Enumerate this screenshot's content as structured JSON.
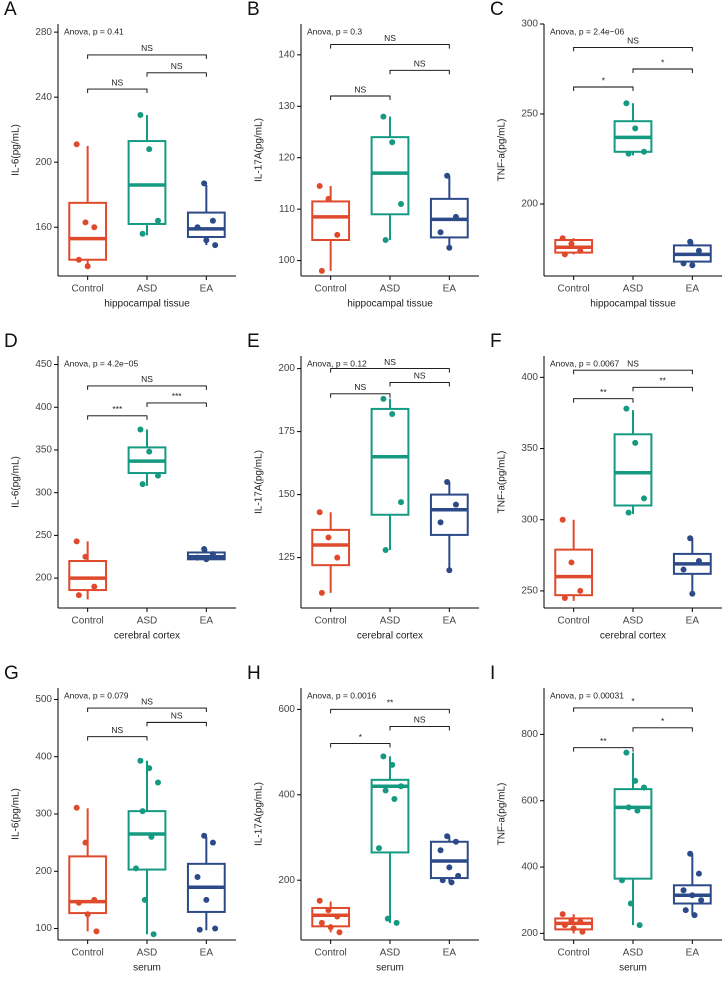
{
  "chart_data": [
    {
      "type": "box",
      "panel": "A",
      "annotation": "Anova, p = 0.41",
      "xlabel": "hippocampal tissue",
      "ylabel": "IL-6(pg/mL)",
      "categories": [
        "Control",
        "ASD",
        "EA"
      ],
      "colors": [
        "#e04a2c",
        "#159a82",
        "#2c4a88"
      ],
      "boxes": [
        {
          "min": 136,
          "q1": 140,
          "median": 153,
          "q3": 175,
          "max": 210,
          "points": [
            211,
            163,
            160,
            140,
            136
          ]
        },
        {
          "min": 155,
          "q1": 162,
          "median": 186,
          "q3": 213,
          "max": 229,
          "points": [
            229,
            208,
            164,
            156
          ]
        },
        {
          "min": 149,
          "q1": 154,
          "median": 159,
          "q3": 169,
          "max": 186,
          "points": [
            187,
            164,
            160,
            152,
            149
          ]
        }
      ],
      "ylim": [
        130,
        285
      ],
      "yticks": [
        160,
        200,
        240,
        280
      ],
      "brackets": [
        {
          "from": 0,
          "to": 1,
          "y": 245,
          "label": "NS"
        },
        {
          "from": 1,
          "to": 2,
          "y": 255,
          "label": "NS"
        },
        {
          "from": 0,
          "to": 2,
          "y": 266,
          "label": "NS"
        }
      ]
    },
    {
      "type": "box",
      "panel": "B",
      "annotation": "Anova, p = 0.3",
      "xlabel": "hippocampal tissue",
      "ylabel": "IL-17A(pg/mL)",
      "categories": [
        "Control",
        "ASD",
        "EA"
      ],
      "colors": [
        "#e04a2c",
        "#159a82",
        "#2c4a88"
      ],
      "boxes": [
        {
          "min": 98,
          "q1": 104,
          "median": 108.5,
          "q3": 111.5,
          "max": 114.5,
          "points": [
            114.5,
            112,
            105,
            98
          ]
        },
        {
          "min": 104,
          "q1": 109,
          "median": 117,
          "q3": 124,
          "max": 128,
          "points": [
            128,
            123,
            111,
            104
          ]
        },
        {
          "min": 102.5,
          "q1": 104.5,
          "median": 108,
          "q3": 112,
          "max": 116.5,
          "points": [
            116.5,
            108.5,
            105.5,
            102.5
          ]
        }
      ],
      "ylim": [
        97,
        146
      ],
      "yticks": [
        100,
        110,
        120,
        130,
        140
      ],
      "brackets": [
        {
          "from": 0,
          "to": 1,
          "y": 132,
          "label": "NS"
        },
        {
          "from": 1,
          "to": 2,
          "y": 137,
          "label": "NS"
        },
        {
          "from": 0,
          "to": 2,
          "y": 142,
          "label": "NS"
        }
      ]
    },
    {
      "type": "box",
      "panel": "C",
      "annotation": "Anova, p = 2.4e−06",
      "xlabel": "hippocampal tissue",
      "ylabel": "TNF-a(pg/mL)",
      "categories": [
        "Control",
        "ASD",
        "EA"
      ],
      "colors": [
        "#e04a2c",
        "#159a82",
        "#2c4a88"
      ],
      "boxes": [
        {
          "min": 172,
          "q1": 173,
          "median": 176,
          "q3": 180,
          "max": 181,
          "points": [
            181,
            178,
            174,
            172
          ]
        },
        {
          "min": 227,
          "q1": 229,
          "median": 237,
          "q3": 246,
          "max": 256,
          "points": [
            256,
            242,
            229,
            228
          ]
        },
        {
          "min": 165,
          "q1": 168,
          "median": 172,
          "q3": 177,
          "max": 179,
          "points": [
            179,
            174,
            167,
            166
          ]
        }
      ],
      "ylim": [
        160,
        300
      ],
      "yticks": [
        200,
        250,
        300
      ],
      "brackets": [
        {
          "from": 0,
          "to": 1,
          "y": 265,
          "label": "*"
        },
        {
          "from": 1,
          "to": 2,
          "y": 275,
          "label": "*"
        },
        {
          "from": 0,
          "to": 2,
          "y": 287,
          "label": "NS"
        }
      ]
    },
    {
      "type": "box",
      "panel": "D",
      "annotation": "Anova, p = 4.2e−05",
      "xlabel": "cerebral cortex",
      "ylabel": "IL-6(pg/mL)",
      "categories": [
        "Control",
        "ASD",
        "EA"
      ],
      "colors": [
        "#e04a2c",
        "#159a82",
        "#2c4a88"
      ],
      "boxes": [
        {
          "min": 175,
          "q1": 186,
          "median": 200,
          "q3": 220,
          "max": 243,
          "points": [
            243,
            225,
            190,
            180
          ]
        },
        {
          "min": 308,
          "q1": 323,
          "median": 337,
          "q3": 353,
          "max": 374,
          "points": [
            374,
            348,
            320,
            310
          ]
        },
        {
          "min": 220,
          "q1": 222,
          "median": 225,
          "q3": 230,
          "max": 234,
          "points": [
            234,
            228,
            224,
            222
          ]
        }
      ],
      "ylim": [
        165,
        460
      ],
      "yticks": [
        200,
        250,
        300,
        350,
        400,
        450
      ],
      "brackets": [
        {
          "from": 0,
          "to": 1,
          "y": 390,
          "label": "***"
        },
        {
          "from": 1,
          "to": 2,
          "y": 405,
          "label": "***"
        },
        {
          "from": 0,
          "to": 2,
          "y": 425,
          "label": "NS"
        }
      ]
    },
    {
      "type": "box",
      "panel": "E",
      "annotation": "Anova, p = 0.12",
      "xlabel": "cerebral cortex",
      "ylabel": "IL-17A(pg/mL)",
      "categories": [
        "Control",
        "ASD",
        "EA"
      ],
      "colors": [
        "#e04a2c",
        "#159a82",
        "#2c4a88"
      ],
      "boxes": [
        {
          "min": 111,
          "q1": 122,
          "median": 130,
          "q3": 136,
          "max": 143,
          "points": [
            143,
            133,
            125,
            111
          ]
        },
        {
          "min": 128,
          "q1": 142,
          "median": 165,
          "q3": 184,
          "max": 188,
          "points": [
            188,
            182,
            147,
            128
          ]
        },
        {
          "min": 120,
          "q1": 134,
          "median": 144,
          "q3": 150,
          "max": 155,
          "points": [
            155,
            146,
            139,
            120
          ]
        }
      ],
      "ylim": [
        105,
        205
      ],
      "yticks": [
        125,
        150,
        175,
        200
      ],
      "brackets": [
        {
          "from": 0,
          "to": 1,
          "y": 190,
          "label": "NS"
        },
        {
          "from": 1,
          "to": 2,
          "y": 194.5,
          "label": "NS"
        },
        {
          "from": 0,
          "to": 2,
          "y": 200,
          "label": "NS"
        }
      ]
    },
    {
      "type": "box",
      "panel": "F",
      "annotation": "Anova, p = 0.0067",
      "xlabel": "cerebral cortex",
      "ylabel": "TNF-a(pg/mL)",
      "categories": [
        "Control",
        "ASD",
        "EA"
      ],
      "colors": [
        "#e04a2c",
        "#159a82",
        "#2c4a88"
      ],
      "boxes": [
        {
          "min": 243,
          "q1": 247,
          "median": 260,
          "q3": 279,
          "max": 300,
          "points": [
            300,
            270,
            250,
            245
          ]
        },
        {
          "min": 304,
          "q1": 310,
          "median": 333,
          "q3": 360,
          "max": 377,
          "points": [
            378,
            354,
            315,
            305
          ]
        },
        {
          "min": 248,
          "q1": 262,
          "median": 269,
          "q3": 276,
          "max": 287,
          "points": [
            287,
            271,
            265,
            248
          ]
        }
      ],
      "ylim": [
        238,
        415
      ],
      "yticks": [
        250,
        300,
        350,
        400
      ],
      "brackets": [
        {
          "from": 0,
          "to": 1,
          "y": 385,
          "label": "**"
        },
        {
          "from": 1,
          "to": 2,
          "y": 393,
          "label": "**"
        },
        {
          "from": 0,
          "to": 2,
          "y": 405,
          "label": "NS"
        }
      ]
    },
    {
      "type": "box",
      "panel": "G",
      "annotation": "Anova, p = 0.079",
      "xlabel": "serum",
      "ylabel": "IL-6(pg/mL)",
      "categories": [
        "Control",
        "ASD",
        "EA"
      ],
      "colors": [
        "#e04a2c",
        "#159a82",
        "#2c4a88"
      ],
      "boxes": [
        {
          "min": 95,
          "q1": 127,
          "median": 147,
          "q3": 226,
          "max": 310,
          "points": [
            311,
            250,
            150,
            145,
            125,
            95
          ]
        },
        {
          "min": 90,
          "q1": 203,
          "median": 265,
          "q3": 305,
          "max": 393,
          "points": [
            393,
            380,
            355,
            305,
            260,
            205,
            150,
            90
          ]
        },
        {
          "min": 97,
          "q1": 129,
          "median": 172,
          "q3": 213,
          "max": 260,
          "points": [
            262,
            250,
            190,
            150,
            100,
            98
          ]
        }
      ],
      "ylim": [
        80,
        520
      ],
      "yticks": [
        100,
        200,
        300,
        400,
        500
      ],
      "brackets": [
        {
          "from": 0,
          "to": 1,
          "y": 435,
          "label": "NS"
        },
        {
          "from": 1,
          "to": 2,
          "y": 460,
          "label": "NS"
        },
        {
          "from": 0,
          "to": 2,
          "y": 485,
          "label": "NS"
        }
      ]
    },
    {
      "type": "box",
      "panel": "H",
      "annotation": "Anova, p = 0.0016",
      "xlabel": "serum",
      "ylabel": "IL-17A(pg/mL)",
      "categories": [
        "Control",
        "ASD",
        "EA"
      ],
      "colors": [
        "#e04a2c",
        "#159a82",
        "#2c4a88"
      ],
      "boxes": [
        {
          "min": 78,
          "q1": 92,
          "median": 118,
          "q3": 135,
          "max": 150,
          "points": [
            152,
            130,
            115,
            100,
            90,
            78
          ]
        },
        {
          "min": 100,
          "q1": 265,
          "median": 420,
          "q3": 435,
          "max": 490,
          "points": [
            490,
            470,
            420,
            410,
            390,
            275,
            110,
            100
          ]
        },
        {
          "min": 195,
          "q1": 205,
          "median": 245,
          "q3": 290,
          "max": 303,
          "points": [
            303,
            290,
            270,
            230,
            210,
            200,
            195
          ]
        }
      ],
      "ylim": [
        60,
        650
      ],
      "yticks": [
        200,
        400,
        600
      ],
      "brackets": [
        {
          "from": 0,
          "to": 1,
          "y": 520,
          "label": "*"
        },
        {
          "from": 1,
          "to": 2,
          "y": 560,
          "label": "NS"
        },
        {
          "from": 0,
          "to": 2,
          "y": 600,
          "label": "**"
        }
      ]
    },
    {
      "type": "box",
      "panel": "I",
      "annotation": "Anova, p = 0.00031",
      "xlabel": "serum",
      "ylabel": "TNF-a(pg/mL)",
      "categories": [
        "Control",
        "ASD",
        "EA"
      ],
      "colors": [
        "#e04a2c",
        "#159a82",
        "#2c4a88"
      ],
      "boxes": [
        {
          "min": 200,
          "q1": 212,
          "median": 230,
          "q3": 245,
          "max": 258,
          "points": [
            258,
            240,
            235,
            225,
            215,
            205
          ]
        },
        {
          "min": 225,
          "q1": 365,
          "median": 580,
          "q3": 635,
          "max": 745,
          "points": [
            745,
            660,
            640,
            580,
            570,
            360,
            290,
            225
          ]
        },
        {
          "min": 255,
          "q1": 290,
          "median": 315,
          "q3": 345,
          "max": 440,
          "points": [
            440,
            380,
            330,
            315,
            300,
            270,
            255
          ]
        }
      ],
      "ylim": [
        180,
        940
      ],
      "yticks": [
        200,
        400,
        600,
        800
      ],
      "brackets": [
        {
          "from": 0,
          "to": 1,
          "y": 760,
          "label": "**"
        },
        {
          "from": 1,
          "to": 2,
          "y": 820,
          "label": "*"
        },
        {
          "from": 0,
          "to": 2,
          "y": 880,
          "label": "*"
        }
      ]
    }
  ]
}
